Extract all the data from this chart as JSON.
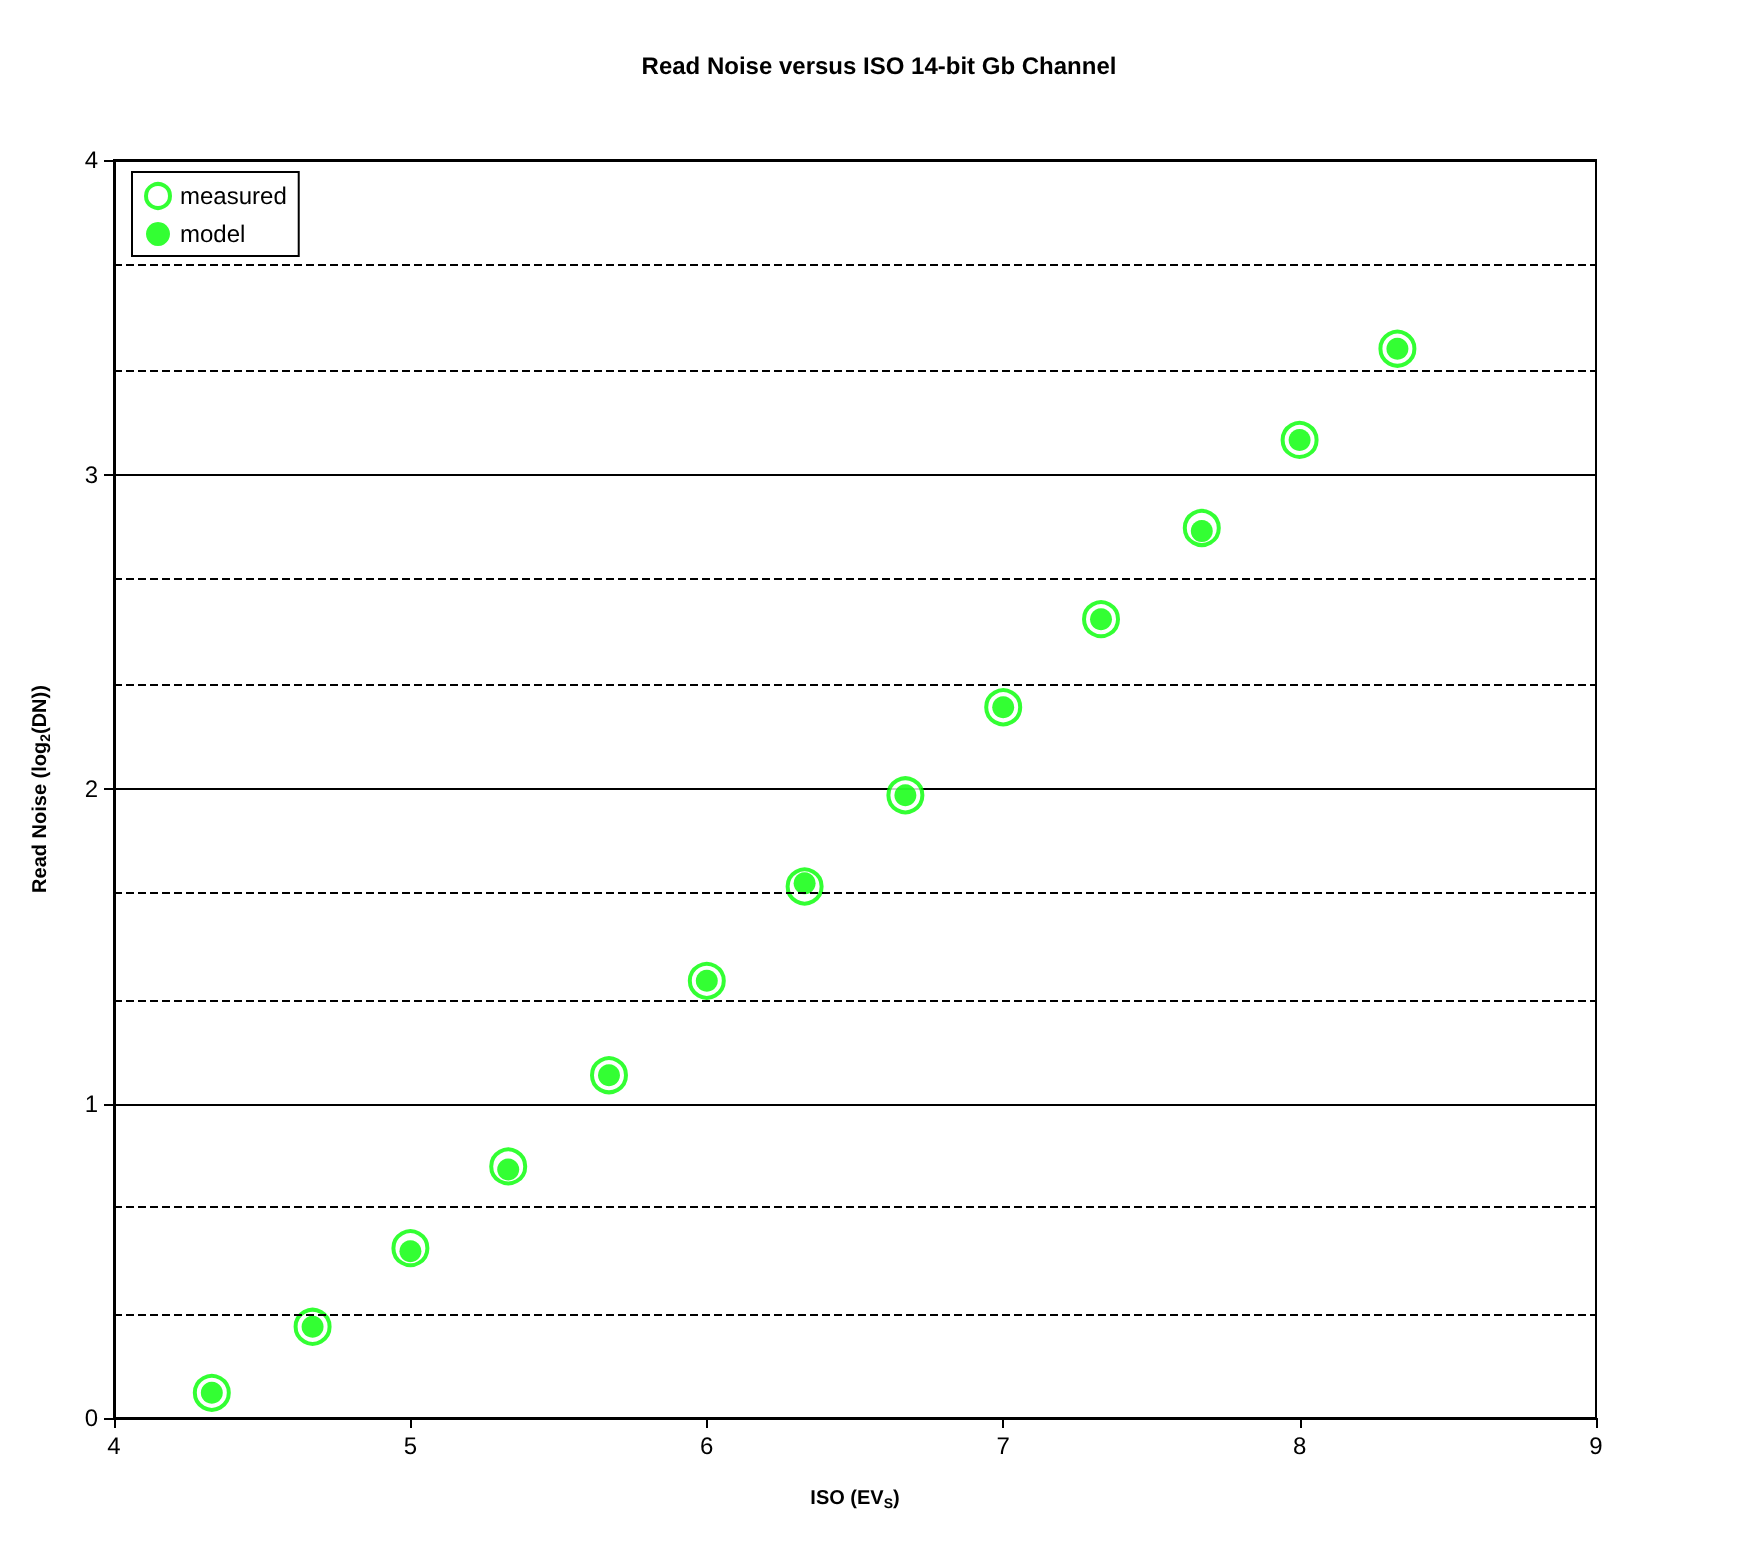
{
  "chart_data": {
    "type": "scatter",
    "title": "Read Noise versus ISO 14-bit Gb Channel",
    "xlabel": "ISO (EV$_{S}$)",
    "ylabel": "Read Noise (log$_{2}$(DN))",
    "x": [
      4.33,
      4.67,
      5,
      5.33,
      5.67,
      6,
      6.33,
      6.67,
      7,
      7.33,
      7.67,
      8,
      8.33
    ],
    "series": [
      {
        "name": "measured",
        "color": "#00ff00",
        "values": [
          0.08,
          0.29,
          0.54,
          0.8,
          1.09,
          1.39,
          1.69,
          1.98,
          2.26,
          2.54,
          2.83,
          3.11,
          3.4
        ]
      },
      {
        "name": "model",
        "color": "#00ff00",
        "values": [
          0.08,
          0.29,
          0.53,
          0.79,
          1.09,
          1.39,
          1.7,
          1.98,
          2.26,
          2.54,
          2.82,
          3.11,
          3.4
        ]
      }
    ],
    "xlim": [
      4,
      9
    ],
    "xticks": [
      4,
      5,
      6,
      7,
      8,
      9
    ],
    "ylim": [
      0,
      4
    ],
    "yticks": [
      0,
      1,
      2,
      3,
      4
    ],
    "ref_lines": [
      {
        "axis": "y",
        "value": 0.333,
        "color": "#000000",
        "line_style": "dashed"
      },
      {
        "axis": "y",
        "value": 0.667,
        "color": "#000000",
        "line_style": "dashed"
      },
      {
        "axis": "y",
        "value": 1.333,
        "color": "#000000",
        "line_style": "dashed"
      },
      {
        "axis": "y",
        "value": 1.667,
        "color": "#000000",
        "line_style": "dashed"
      },
      {
        "axis": "y",
        "value": 2.333,
        "color": "#000000",
        "line_style": "dashed"
      },
      {
        "axis": "y",
        "value": 2.667,
        "color": "#000000",
        "line_style": "dashed"
      },
      {
        "axis": "y",
        "value": 3.333,
        "color": "#000000",
        "line_style": "dashed"
      },
      {
        "axis": "y",
        "value": 3.667,
        "color": "#000000",
        "line_style": "dashed"
      }
    ],
    "grid": "y",
    "legend": "top left",
    "marker": "circle"
  }
}
